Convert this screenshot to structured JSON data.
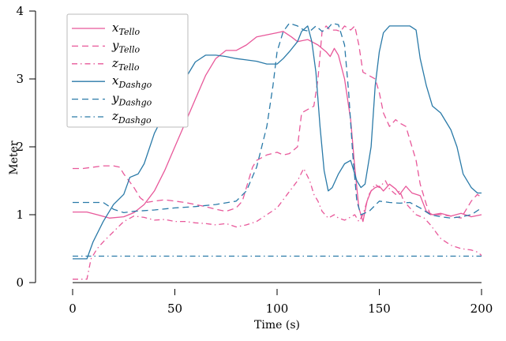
{
  "chart_data": {
    "type": "line",
    "xlabel": "Time (s)",
    "ylabel": "Meter",
    "xlim": [
      0,
      200
    ],
    "ylim": [
      0,
      4
    ],
    "xticks": [
      0,
      50,
      100,
      150,
      200
    ],
    "yticks": [
      0,
      1,
      2,
      3,
      4
    ],
    "grid": false,
    "legend_position": "top-left",
    "series": [
      {
        "name": "x_Tello",
        "main": "x",
        "sub": "Tello",
        "color": "#e8589a",
        "dash": "solid",
        "points": [
          [
            0,
            1.04
          ],
          [
            7,
            1.04
          ],
          [
            12,
            1.0
          ],
          [
            18,
            0.95
          ],
          [
            25,
            0.97
          ],
          [
            30,
            1.03
          ],
          [
            35,
            1.15
          ],
          [
            40,
            1.35
          ],
          [
            45,
            1.65
          ],
          [
            50,
            2.0
          ],
          [
            55,
            2.35
          ],
          [
            60,
            2.7
          ],
          [
            65,
            3.05
          ],
          [
            70,
            3.3
          ],
          [
            75,
            3.42
          ],
          [
            80,
            3.42
          ],
          [
            85,
            3.5
          ],
          [
            90,
            3.62
          ],
          [
            95,
            3.65
          ],
          [
            100,
            3.68
          ],
          [
            103,
            3.7
          ],
          [
            107,
            3.62
          ],
          [
            110,
            3.55
          ],
          [
            115,
            3.58
          ],
          [
            120,
            3.5
          ],
          [
            124,
            3.4
          ],
          [
            126,
            3.33
          ],
          [
            128,
            3.45
          ],
          [
            130,
            3.35
          ],
          [
            133,
            3.0
          ],
          [
            136,
            2.4
          ],
          [
            138,
            1.7
          ],
          [
            140,
            1.1
          ],
          [
            142,
            0.9
          ],
          [
            144,
            1.2
          ],
          [
            146,
            1.35
          ],
          [
            148,
            1.4
          ],
          [
            150,
            1.42
          ],
          [
            152,
            1.35
          ],
          [
            155,
            1.45
          ],
          [
            158,
            1.38
          ],
          [
            160,
            1.3
          ],
          [
            163,
            1.42
          ],
          [
            166,
            1.32
          ],
          [
            170,
            1.28
          ],
          [
            173,
            1.05
          ],
          [
            176,
            1.0
          ],
          [
            180,
            1.02
          ],
          [
            185,
            0.98
          ],
          [
            190,
            1.02
          ],
          [
            195,
            0.97
          ],
          [
            200,
            1.0
          ]
        ]
      },
      {
        "name": "y_Tello",
        "main": "y",
        "sub": "Tello",
        "color": "#e8589a",
        "dash": "dashed",
        "points": [
          [
            0,
            1.68
          ],
          [
            5,
            1.68
          ],
          [
            10,
            1.7
          ],
          [
            15,
            1.72
          ],
          [
            20,
            1.72
          ],
          [
            23,
            1.7
          ],
          [
            25,
            1.6
          ],
          [
            30,
            1.4
          ],
          [
            33,
            1.25
          ],
          [
            36,
            1.18
          ],
          [
            40,
            1.2
          ],
          [
            45,
            1.22
          ],
          [
            50,
            1.2
          ],
          [
            55,
            1.18
          ],
          [
            60,
            1.15
          ],
          [
            65,
            1.12
          ],
          [
            70,
            1.08
          ],
          [
            75,
            1.05
          ],
          [
            80,
            1.1
          ],
          [
            83,
            1.2
          ],
          [
            86,
            1.5
          ],
          [
            88,
            1.7
          ],
          [
            90,
            1.8
          ],
          [
            95,
            1.88
          ],
          [
            100,
            1.92
          ],
          [
            103,
            1.88
          ],
          [
            106,
            1.9
          ],
          [
            110,
            2.0
          ],
          [
            112,
            2.5
          ],
          [
            115,
            2.55
          ],
          [
            118,
            2.6
          ],
          [
            120,
            3.0
          ],
          [
            122,
            3.7
          ],
          [
            124,
            3.78
          ],
          [
            126,
            3.72
          ],
          [
            129,
            3.72
          ],
          [
            131,
            3.7
          ],
          [
            133,
            3.78
          ],
          [
            136,
            3.72
          ],
          [
            138,
            3.78
          ],
          [
            140,
            3.5
          ],
          [
            142,
            3.1
          ],
          [
            145,
            3.05
          ],
          [
            148,
            3.0
          ],
          [
            150,
            2.8
          ],
          [
            152,
            2.5
          ],
          [
            155,
            2.3
          ],
          [
            158,
            2.4
          ],
          [
            160,
            2.35
          ],
          [
            163,
            2.3
          ],
          [
            165,
            2.1
          ],
          [
            168,
            1.8
          ],
          [
            170,
            1.45
          ],
          [
            173,
            1.15
          ],
          [
            175,
            1.0
          ],
          [
            180,
            1.0
          ],
          [
            185,
            0.98
          ],
          [
            190,
            0.95
          ],
          [
            195,
            1.2
          ],
          [
            198,
            1.3
          ],
          [
            200,
            1.25
          ]
        ]
      },
      {
        "name": "z_Tello",
        "main": "z",
        "sub": "Tello",
        "color": "#e8589a",
        "dash": "dashdot",
        "points": [
          [
            0,
            0.05
          ],
          [
            7,
            0.05
          ],
          [
            9,
            0.35
          ],
          [
            12,
            0.5
          ],
          [
            15,
            0.6
          ],
          [
            20,
            0.75
          ],
          [
            25,
            0.9
          ],
          [
            30,
            0.98
          ],
          [
            35,
            0.96
          ],
          [
            40,
            0.92
          ],
          [
            45,
            0.93
          ],
          [
            50,
            0.9
          ],
          [
            55,
            0.9
          ],
          [
            60,
            0.88
          ],
          [
            65,
            0.87
          ],
          [
            70,
            0.85
          ],
          [
            75,
            0.87
          ],
          [
            80,
            0.82
          ],
          [
            85,
            0.85
          ],
          [
            90,
            0.9
          ],
          [
            95,
            1.0
          ],
          [
            100,
            1.1
          ],
          [
            105,
            1.3
          ],
          [
            110,
            1.5
          ],
          [
            113,
            1.68
          ],
          [
            116,
            1.5
          ],
          [
            118,
            1.3
          ],
          [
            120,
            1.2
          ],
          [
            122,
            1.05
          ],
          [
            125,
            0.95
          ],
          [
            128,
            1.0
          ],
          [
            130,
            0.95
          ],
          [
            133,
            0.92
          ],
          [
            135,
            0.95
          ],
          [
            138,
            1.0
          ],
          [
            140,
            0.9
          ],
          [
            142,
            1.0
          ],
          [
            145,
            1.3
          ],
          [
            148,
            1.45
          ],
          [
            150,
            1.4
          ],
          [
            153,
            1.5
          ],
          [
            155,
            1.38
          ],
          [
            158,
            1.3
          ],
          [
            160,
            1.35
          ],
          [
            162,
            1.2
          ],
          [
            165,
            1.1
          ],
          [
            168,
            1.0
          ],
          [
            172,
            0.95
          ],
          [
            175,
            0.85
          ],
          [
            180,
            0.65
          ],
          [
            185,
            0.55
          ],
          [
            190,
            0.5
          ],
          [
            195,
            0.48
          ],
          [
            198,
            0.45
          ],
          [
            200,
            0.4
          ]
        ]
      },
      {
        "name": "x_Dashgo",
        "main": "x",
        "sub": "Dashgo",
        "color": "#2a7aa8",
        "dash": "solid",
        "points": [
          [
            0,
            0.35
          ],
          [
            7,
            0.35
          ],
          [
            10,
            0.6
          ],
          [
            15,
            0.9
          ],
          [
            20,
            1.15
          ],
          [
            25,
            1.3
          ],
          [
            28,
            1.55
          ],
          [
            32,
            1.6
          ],
          [
            35,
            1.75
          ],
          [
            40,
            2.2
          ],
          [
            45,
            2.5
          ],
          [
            50,
            2.7
          ],
          [
            55,
            3.0
          ],
          [
            60,
            3.25
          ],
          [
            65,
            3.35
          ],
          [
            70,
            3.35
          ],
          [
            75,
            3.33
          ],
          [
            80,
            3.3
          ],
          [
            85,
            3.28
          ],
          [
            90,
            3.26
          ],
          [
            95,
            3.22
          ],
          [
            100,
            3.22
          ],
          [
            103,
            3.3
          ],
          [
            106,
            3.4
          ],
          [
            110,
            3.55
          ],
          [
            112,
            3.7
          ],
          [
            115,
            3.78
          ],
          [
            117,
            3.55
          ],
          [
            119,
            3.1
          ],
          [
            121,
            2.3
          ],
          [
            123,
            1.65
          ],
          [
            125,
            1.35
          ],
          [
            127,
            1.4
          ],
          [
            130,
            1.6
          ],
          [
            133,
            1.75
          ],
          [
            136,
            1.8
          ],
          [
            139,
            1.5
          ],
          [
            141,
            1.4
          ],
          [
            143,
            1.45
          ],
          [
            146,
            2.0
          ],
          [
            148,
            2.9
          ],
          [
            150,
            3.4
          ],
          [
            152,
            3.68
          ],
          [
            155,
            3.78
          ],
          [
            160,
            3.78
          ],
          [
            165,
            3.78
          ],
          [
            168,
            3.72
          ],
          [
            170,
            3.3
          ],
          [
            173,
            2.9
          ],
          [
            176,
            2.6
          ],
          [
            180,
            2.5
          ],
          [
            185,
            2.25
          ],
          [
            188,
            2.0
          ],
          [
            191,
            1.6
          ],
          [
            195,
            1.4
          ],
          [
            198,
            1.32
          ],
          [
            200,
            1.32
          ]
        ]
      },
      {
        "name": "y_Dashgo",
        "main": "y",
        "sub": "Dashgo",
        "color": "#2a7aa8",
        "dash": "dashed",
        "points": [
          [
            0,
            1.18
          ],
          [
            15,
            1.18
          ],
          [
            20,
            1.08
          ],
          [
            25,
            1.03
          ],
          [
            30,
            1.05
          ],
          [
            40,
            1.07
          ],
          [
            50,
            1.1
          ],
          [
            60,
            1.12
          ],
          [
            70,
            1.15
          ],
          [
            80,
            1.2
          ],
          [
            85,
            1.35
          ],
          [
            90,
            1.7
          ],
          [
            95,
            2.3
          ],
          [
            98,
            2.9
          ],
          [
            100,
            3.4
          ],
          [
            103,
            3.7
          ],
          [
            106,
            3.82
          ],
          [
            110,
            3.78
          ],
          [
            113,
            3.72
          ],
          [
            116,
            3.7
          ],
          [
            119,
            3.78
          ],
          [
            122,
            3.7
          ],
          [
            125,
            3.75
          ],
          [
            127,
            3.82
          ],
          [
            130,
            3.8
          ],
          [
            133,
            3.5
          ],
          [
            135,
            2.8
          ],
          [
            137,
            1.9
          ],
          [
            139,
            1.2
          ],
          [
            141,
            1.0
          ],
          [
            145,
            1.05
          ],
          [
            150,
            1.2
          ],
          [
            155,
            1.18
          ],
          [
            160,
            1.17
          ],
          [
            165,
            1.18
          ],
          [
            170,
            1.1
          ],
          [
            175,
            1.0
          ],
          [
            180,
            0.97
          ],
          [
            185,
            0.95
          ],
          [
            190,
            0.97
          ],
          [
            195,
            1.0
          ],
          [
            200,
            1.1
          ]
        ]
      },
      {
        "name": "z_Dashgo",
        "main": "z",
        "sub": "Dashgo",
        "color": "#2a7aa8",
        "dash": "dashdot",
        "points": [
          [
            0,
            0.39
          ],
          [
            200,
            0.39
          ]
        ]
      }
    ]
  }
}
